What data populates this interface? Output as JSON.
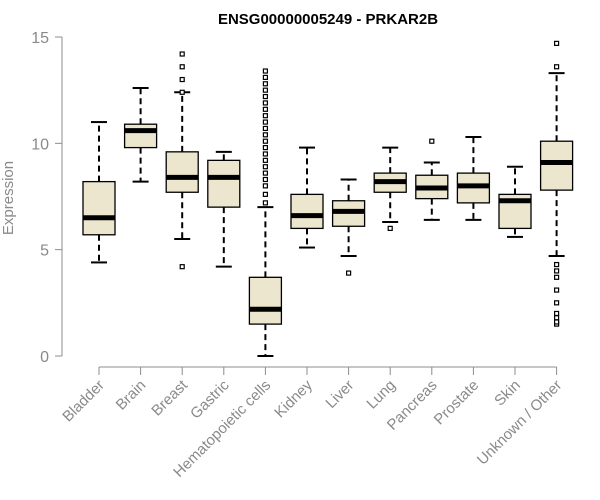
{
  "chart_data": {
    "type": "boxplot",
    "title": "ENSG00000005249 - PRKAR2B",
    "xlabel": "",
    "ylabel": "Expression",
    "ylim": [
      0,
      15
    ],
    "yticks": [
      0,
      5,
      10,
      15
    ],
    "categories": [
      "Bladder",
      "Brain",
      "Breast",
      "Gastric",
      "Hematopoietic cells",
      "Kidney",
      "Liver",
      "Lung",
      "Pancreas",
      "Prostate",
      "Skin",
      "Unknown / Other"
    ],
    "boxes": [
      {
        "name": "Bladder",
        "whisker_low": 4.4,
        "q1": 5.7,
        "median": 6.5,
        "q3": 8.2,
        "whisker_high": 11.0,
        "outliers": []
      },
      {
        "name": "Brain",
        "whisker_low": 8.2,
        "q1": 9.8,
        "median": 10.6,
        "q3": 10.9,
        "whisker_high": 12.6,
        "outliers": []
      },
      {
        "name": "Breast",
        "whisker_low": 5.5,
        "q1": 7.7,
        "median": 8.4,
        "q3": 9.6,
        "whisker_high": 12.4,
        "outliers": [
          4.2,
          12.4,
          13.0,
          13.6,
          14.2
        ]
      },
      {
        "name": "Gastric",
        "whisker_low": 4.2,
        "q1": 7.0,
        "median": 8.4,
        "q3": 9.2,
        "whisker_high": 9.6,
        "outliers": []
      },
      {
        "name": "Hematopoietic cells",
        "whisker_low": 0.0,
        "q1": 1.5,
        "median": 2.2,
        "q3": 3.7,
        "whisker_high": 7.0,
        "outliers": [
          7.2,
          7.6,
          8.0,
          8.3,
          8.6,
          8.9,
          9.2,
          9.5,
          9.8,
          10.1,
          10.4,
          10.7,
          11.0,
          11.3,
          11.6,
          11.9,
          12.2,
          12.5,
          12.8,
          13.1,
          13.4
        ]
      },
      {
        "name": "Kidney",
        "whisker_low": 5.1,
        "q1": 6.0,
        "median": 6.6,
        "q3": 7.6,
        "whisker_high": 9.8,
        "outliers": []
      },
      {
        "name": "Liver",
        "whisker_low": 4.7,
        "q1": 6.1,
        "median": 6.8,
        "q3": 7.3,
        "whisker_high": 8.3,
        "outliers": [
          3.9
        ]
      },
      {
        "name": "Lung",
        "whisker_low": 6.3,
        "q1": 7.7,
        "median": 8.2,
        "q3": 8.6,
        "whisker_high": 9.8,
        "outliers": [
          6.0
        ]
      },
      {
        "name": "Pancreas",
        "whisker_low": 6.4,
        "q1": 7.4,
        "median": 7.9,
        "q3": 8.5,
        "whisker_high": 9.1,
        "outliers": [
          10.1
        ]
      },
      {
        "name": "Prostate",
        "whisker_low": 6.4,
        "q1": 7.2,
        "median": 8.0,
        "q3": 8.6,
        "whisker_high": 10.3,
        "outliers": []
      },
      {
        "name": "Skin",
        "whisker_low": 5.6,
        "q1": 6.0,
        "median": 7.3,
        "q3": 7.6,
        "whisker_high": 8.9,
        "outliers": []
      },
      {
        "name": "Unknown / Other",
        "whisker_low": 4.7,
        "q1": 7.8,
        "median": 9.1,
        "q3": 10.1,
        "whisker_high": 13.3,
        "outliers": [
          1.5,
          1.6,
          1.8,
          2.0,
          2.5,
          3.1,
          3.7,
          4.0,
          4.3,
          13.6,
          14.7
        ]
      }
    ],
    "colors": {
      "box_fill": "#ede6cf",
      "box_stroke": "#000000",
      "axis": "#8c8c8c",
      "text": "#8a8a8a"
    },
    "grid": false
  }
}
